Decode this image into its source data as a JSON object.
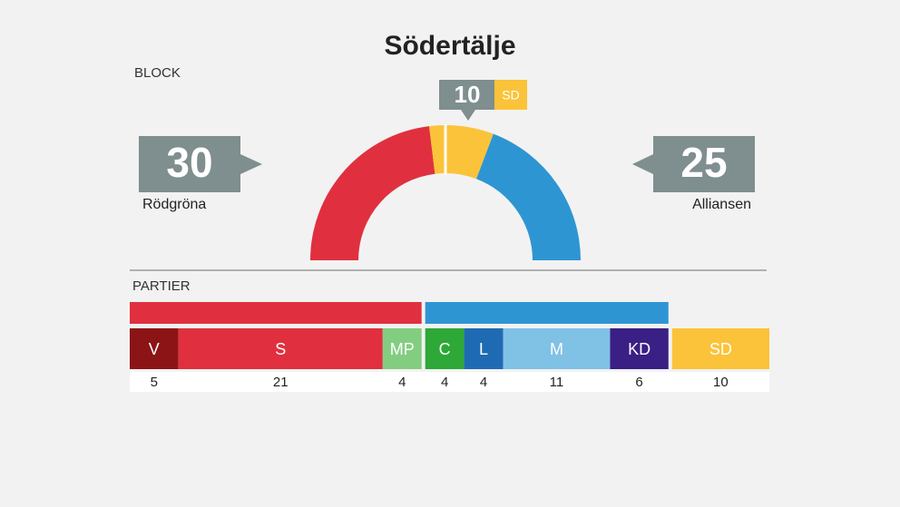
{
  "chart_data": {
    "type": "seat-arc",
    "title": "Södertälje",
    "block_heading": "BLOCK",
    "party_heading": "PARTIER",
    "blocks": [
      {
        "name": "Rödgröna",
        "value": 30,
        "color": "#e0303f",
        "parties": [
          {
            "name": "V",
            "value": 5,
            "color": "#8c1416"
          },
          {
            "name": "S",
            "value": 21,
            "color": "#e0303f"
          },
          {
            "name": "MP",
            "value": 4,
            "color": "#83cd81"
          }
        ]
      },
      {
        "name": "Alliansen",
        "value": 25,
        "color": "#2e95d3",
        "parties": [
          {
            "name": "C",
            "value": 4,
            "color": "#2ea836"
          },
          {
            "name": "L",
            "value": 4,
            "color": "#1f6bb3"
          },
          {
            "name": "M",
            "value": 11,
            "color": "#80c1e6"
          },
          {
            "name": "KD",
            "value": 6,
            "color": "#3a1f84"
          }
        ]
      }
    ],
    "unaligned": {
      "name": "SD",
      "value": 10,
      "color": "#fbc33a"
    }
  }
}
